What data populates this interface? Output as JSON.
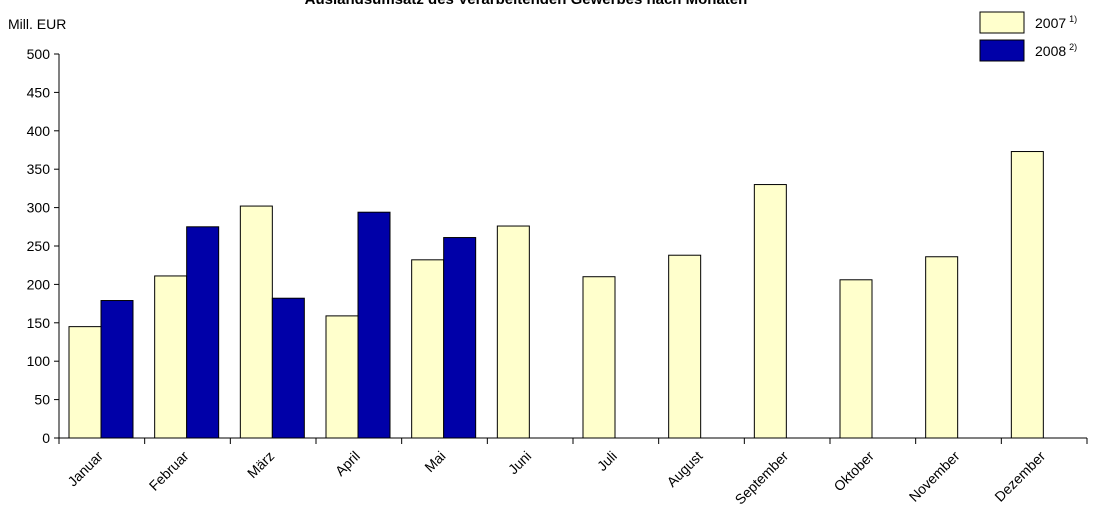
{
  "chart_data": {
    "type": "bar",
    "title": "Auslandsumsatz des Verarbeitenden Gewerbes nach Monaten",
    "ylabel": "Mill. EUR",
    "xlabel": "",
    "ylim": [
      0,
      500
    ],
    "ytick_step": 50,
    "categories": [
      "Januar",
      "Februar",
      "März",
      "April",
      "Mai",
      "Juni",
      "Juli",
      "August",
      "September",
      "Oktober",
      "November",
      "Dezember"
    ],
    "series": [
      {
        "name": "2007",
        "note": "1)",
        "color": "#ffffcc",
        "values": [
          145,
          211,
          302,
          159,
          232,
          276,
          210,
          238,
          330,
          206,
          236,
          373
        ]
      },
      {
        "name": "2008",
        "note": "2)",
        "color": "#0000a8",
        "values": [
          179,
          275,
          182,
          294,
          261,
          null,
          null,
          null,
          null,
          null,
          null,
          null
        ]
      }
    ],
    "legend_position": "top-right",
    "grid": false
  }
}
